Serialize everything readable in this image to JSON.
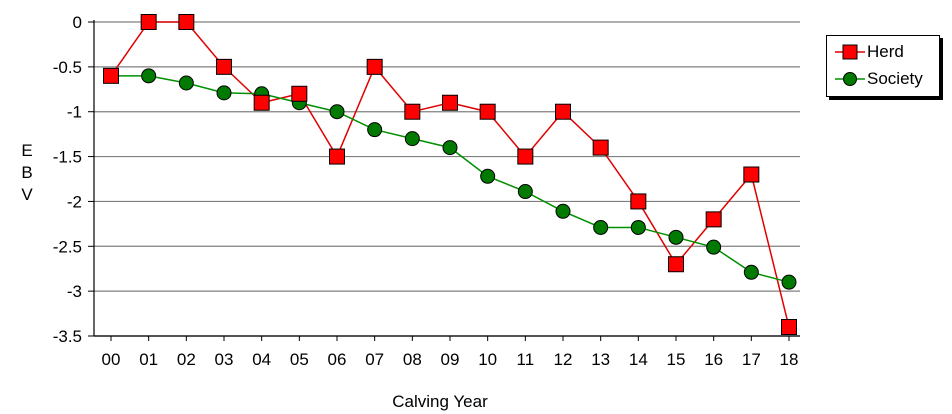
{
  "chart_data": {
    "type": "line",
    "title": "",
    "xlabel": "Calving Year",
    "ylabel": [
      "E",
      "B",
      "V"
    ],
    "categories": [
      "00",
      "01",
      "02",
      "03",
      "04",
      "05",
      "06",
      "07",
      "08",
      "09",
      "10",
      "11",
      "12",
      "13",
      "14",
      "15",
      "16",
      "17",
      "18"
    ],
    "ylim": [
      -3.5,
      0
    ],
    "yticks": [
      0,
      -0.5,
      -1,
      -1.5,
      -2,
      -2.5,
      -3,
      -3.5
    ],
    "ytick_labels": [
      "0",
      "-0.5",
      "-1",
      "-1.5",
      "-2",
      "-2.5",
      "-3",
      "-3.5"
    ],
    "grid": true,
    "legend_position": "top-right",
    "series": [
      {
        "name": "Herd",
        "marker": "square",
        "color": "#e00000",
        "fill": "#ff0000",
        "values": [
          -0.6,
          0,
          0,
          -0.5,
          -0.9,
          -0.8,
          -1.5,
          -0.5,
          -1.0,
          -0.9,
          -1.0,
          -1.5,
          -1.0,
          -1.4,
          -2.0,
          -2.7,
          -2.2,
          -1.7,
          -3.4
        ]
      },
      {
        "name": "Society",
        "marker": "circle",
        "color": "#009000",
        "fill": "#007a00",
        "values": [
          -0.6,
          -0.6,
          -0.68,
          -0.79,
          -0.8,
          -0.9,
          -1.0,
          -1.2,
          -1.3,
          -1.4,
          -1.72,
          -1.89,
          -2.11,
          -2.29,
          -2.29,
          -2.4,
          -2.51,
          -2.79,
          -2.9
        ]
      }
    ]
  }
}
